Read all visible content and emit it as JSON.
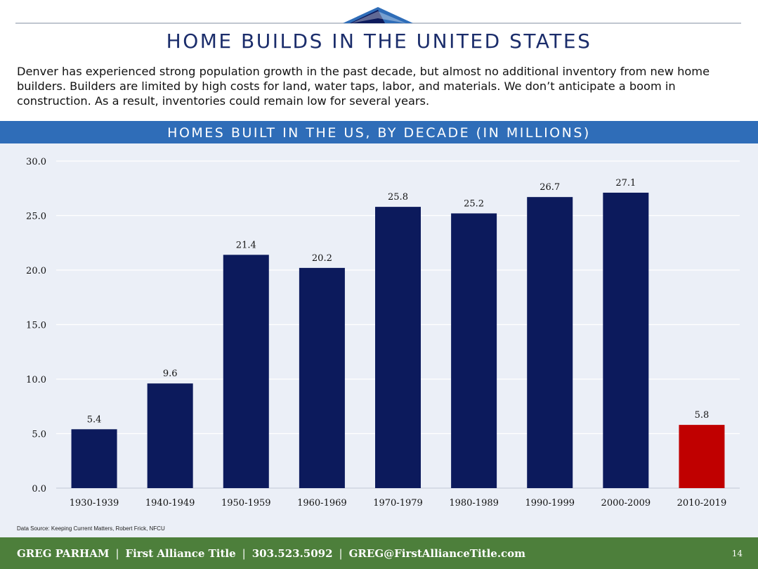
{
  "header": {
    "title": "HOME BUILDS IN THE UNITED STATES",
    "intro": "Denver has experienced strong population growth in the past decade, but almost no additional inventory from new home builders.  Builders are limited by high costs for land, water taps, labor, and materials.  We don’t anticipate a boom in construction.  As a result, inventories could remain low for several years."
  },
  "chart_data": {
    "type": "bar",
    "title": "HOMES BUILT IN THE US, BY DECADE (IN MILLIONS)",
    "categories": [
      "1930-1939",
      "1940-1949",
      "1950-1959",
      "1960-1969",
      "1970-1979",
      "1980-1989",
      "1990-1999",
      "2000-2009",
      "2010-2019"
    ],
    "values": [
      5.4,
      9.6,
      21.4,
      20.2,
      25.8,
      25.2,
      26.7,
      27.1,
      5.8
    ],
    "value_labels": [
      "5.4",
      "9.6",
      "21.4",
      "20.2",
      "25.8",
      "25.2",
      "26.7",
      "27.1",
      "5.8"
    ],
    "yticks": [
      "0.0",
      "5.0",
      "10.0",
      "15.0",
      "20.0",
      "25.0",
      "30.0"
    ],
    "ylim": [
      0,
      30
    ],
    "xlabel": "",
    "ylabel": "",
    "grid": true,
    "colors": {
      "default_bar": "#0c1a5c",
      "highlight_bar": "#c00000"
    },
    "highlight_index": 8
  },
  "source": "Data Source: Keeping Current Matters, Robert Frick, NFCU",
  "footer": {
    "name": "GREG PARHAM",
    "company": "First Alliance Title",
    "phone": "303.523.5092",
    "email": "GREG@FirstAllianceTitle.com",
    "separator": "|",
    "page_number": "14"
  }
}
